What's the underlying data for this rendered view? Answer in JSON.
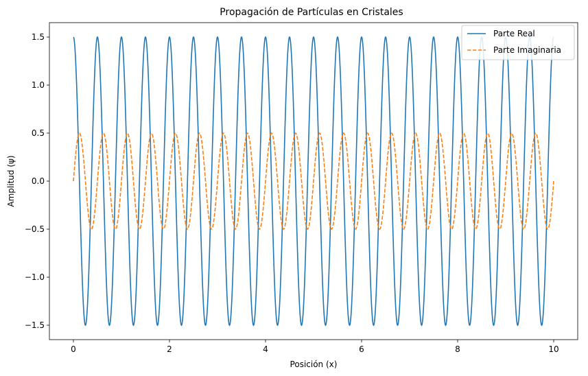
{
  "chart_data": {
    "type": "line",
    "title": "Propagación de Partículas en Cristales",
    "xlabel": "Posición (x)",
    "ylabel": "Amplitud (ψ)",
    "xlim": [
      -0.5,
      10.5
    ],
    "ylim": [
      -1.65,
      1.65
    ],
    "xticks": [
      0,
      2,
      4,
      6,
      8,
      10
    ],
    "xtick_labels": [
      "0",
      "2",
      "4",
      "6",
      "8",
      "10"
    ],
    "yticks": [
      1.5,
      1.0,
      0.5,
      0.0,
      -0.5,
      -1.0,
      -1.5
    ],
    "ytick_labels": [
      "1.5",
      "1.0",
      "0.5",
      "0.0",
      "−0.5",
      "−1.0",
      "−1.5"
    ],
    "grid": false,
    "legend": {
      "placement": "top-right"
    },
    "x_range": [
      0,
      10
    ],
    "series": [
      {
        "name": "Parte Real",
        "function": "1.5*cos(4*pi*x)",
        "amplitude": 1.5,
        "frequency": 2,
        "phase": "cos",
        "color": "#1f77b4",
        "style": "solid"
      },
      {
        "name": "Parte Imaginaria",
        "function": "0.5*sin(4*pi*x)",
        "amplitude": 0.5,
        "frequency": 2,
        "phase": "sin",
        "color": "#ff7f0e",
        "style": "dashed"
      }
    ]
  }
}
